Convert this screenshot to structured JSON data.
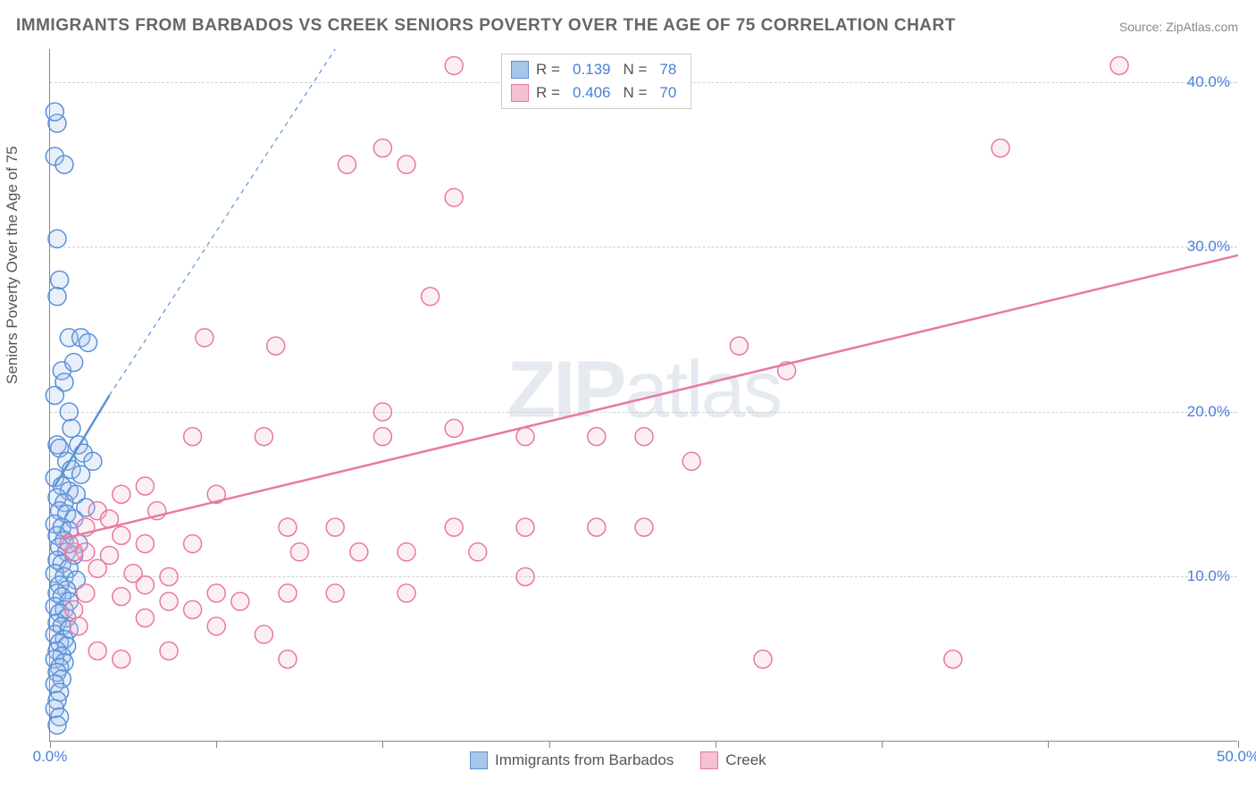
{
  "title": "IMMIGRANTS FROM BARBADOS VS CREEK SENIORS POVERTY OVER THE AGE OF 75 CORRELATION CHART",
  "source": "Source: ZipAtlas.com",
  "ylabel": "Seniors Poverty Over the Age of 75",
  "watermark_bold": "ZIP",
  "watermark_light": "atlas",
  "chart": {
    "type": "scatter",
    "background_color": "#ffffff",
    "grid_color": "#d0d0d0",
    "axis_color": "#888888",
    "tick_label_color": "#4a7fd8",
    "axis_label_color": "#555555",
    "title_color": "#666666",
    "title_fontsize": 19,
    "label_fontsize": 17,
    "tick_fontsize": 17,
    "xlim": [
      0,
      50
    ],
    "ylim": [
      0,
      42
    ],
    "yticks": [
      10,
      20,
      30,
      40
    ],
    "ytick_labels": [
      "10.0%",
      "20.0%",
      "30.0%",
      "40.0%"
    ],
    "xticks": [
      0,
      7,
      14,
      21,
      28,
      35,
      42,
      50
    ],
    "xtick_labels_shown": {
      "0": "0.0%",
      "50": "50.0%"
    },
    "marker_radius": 10,
    "marker_stroke_width": 1.5,
    "marker_fill_opacity": 0.25,
    "series": [
      {
        "name": "Immigrants from Barbados",
        "color_stroke": "#5b91d8",
        "color_fill": "#a8c5ea",
        "R": "0.139",
        "N": "78",
        "trend_line": {
          "x1": 0.2,
          "y1": 15.5,
          "x2": 2.5,
          "y2": 21,
          "dash_extend_to": [
            12,
            42
          ],
          "stroke_width": 2.5
        },
        "points": [
          [
            0.3,
            37.5
          ],
          [
            0.2,
            35.5
          ],
          [
            0.6,
            35
          ],
          [
            0.3,
            30.5
          ],
          [
            0.4,
            28
          ],
          [
            0.3,
            27
          ],
          [
            0.8,
            24.5
          ],
          [
            1.3,
            24.5
          ],
          [
            1.6,
            24.2
          ],
          [
            0.5,
            22.5
          ],
          [
            0.6,
            21.8
          ],
          [
            0.2,
            21
          ],
          [
            0.8,
            20
          ],
          [
            0.9,
            19
          ],
          [
            1.2,
            18
          ],
          [
            0.3,
            18
          ],
          [
            0.4,
            17.8
          ],
          [
            1.4,
            17.5
          ],
          [
            0.7,
            17
          ],
          [
            0.9,
            16.5
          ],
          [
            1.3,
            16.2
          ],
          [
            0.2,
            16
          ],
          [
            0.5,
            15.5
          ],
          [
            0.8,
            15.2
          ],
          [
            1.1,
            15
          ],
          [
            0.3,
            14.8
          ],
          [
            0.6,
            14.5
          ],
          [
            1.5,
            14.2
          ],
          [
            0.4,
            14
          ],
          [
            0.7,
            13.8
          ],
          [
            1.0,
            13.5
          ],
          [
            0.2,
            13.2
          ],
          [
            0.5,
            13
          ],
          [
            0.8,
            12.8
          ],
          [
            0.3,
            12.5
          ],
          [
            0.6,
            12.2
          ],
          [
            1.2,
            12
          ],
          [
            0.4,
            11.8
          ],
          [
            0.7,
            11.5
          ],
          [
            1.0,
            11.3
          ],
          [
            0.3,
            11
          ],
          [
            0.5,
            10.8
          ],
          [
            0.8,
            10.5
          ],
          [
            0.2,
            10.2
          ],
          [
            0.6,
            10
          ],
          [
            1.1,
            9.8
          ],
          [
            0.4,
            9.5
          ],
          [
            0.7,
            9.2
          ],
          [
            0.3,
            9
          ],
          [
            0.5,
            8.8
          ],
          [
            0.8,
            8.5
          ],
          [
            0.2,
            8.2
          ],
          [
            0.6,
            8
          ],
          [
            0.4,
            7.8
          ],
          [
            0.7,
            7.5
          ],
          [
            0.3,
            7.2
          ],
          [
            0.5,
            7
          ],
          [
            0.8,
            6.8
          ],
          [
            0.2,
            6.5
          ],
          [
            0.6,
            6.2
          ],
          [
            0.4,
            6
          ],
          [
            0.7,
            5.8
          ],
          [
            0.3,
            5.5
          ],
          [
            0.5,
            5.2
          ],
          [
            0.2,
            5
          ],
          [
            0.6,
            4.8
          ],
          [
            0.4,
            4.5
          ],
          [
            0.3,
            4.2
          ],
          [
            0.5,
            3.8
          ],
          [
            0.2,
            3.5
          ],
          [
            0.4,
            3
          ],
          [
            0.3,
            2.5
          ],
          [
            0.2,
            2
          ],
          [
            0.4,
            1.5
          ],
          [
            0.3,
            1
          ],
          [
            0.2,
            38.2
          ],
          [
            1.0,
            23
          ],
          [
            1.8,
            17
          ]
        ]
      },
      {
        "name": "Creek",
        "color_stroke": "#e879a0",
        "color_fill": "#f5c0d2",
        "R": "0.406",
        "N": "70",
        "trend_line": {
          "x1": 0.5,
          "y1": 12.3,
          "x2": 50,
          "y2": 29.5,
          "stroke_width": 2.5
        },
        "points": [
          [
            17,
            41
          ],
          [
            45,
            41
          ],
          [
            40,
            36
          ],
          [
            14,
            36
          ],
          [
            12.5,
            35
          ],
          [
            15,
            35
          ],
          [
            17,
            33
          ],
          [
            16,
            27
          ],
          [
            29,
            24
          ],
          [
            31,
            22.5
          ],
          [
            6.5,
            24.5
          ],
          [
            9.5,
            24
          ],
          [
            14,
            20
          ],
          [
            6,
            18.5
          ],
          [
            9,
            18.5
          ],
          [
            14,
            18.5
          ],
          [
            17,
            19
          ],
          [
            20,
            18.5
          ],
          [
            23,
            18.5
          ],
          [
            25,
            18.5
          ],
          [
            27,
            17
          ],
          [
            7,
            15
          ],
          [
            4,
            15.5
          ],
          [
            3,
            15
          ],
          [
            4.5,
            14
          ],
          [
            2,
            14
          ],
          [
            2.5,
            13.5
          ],
          [
            10,
            13
          ],
          [
            12,
            13
          ],
          [
            17,
            13
          ],
          [
            20,
            13
          ],
          [
            23,
            13
          ],
          [
            25,
            13
          ],
          [
            3,
            12.5
          ],
          [
            4,
            12
          ],
          [
            6,
            12
          ],
          [
            1.5,
            11.5
          ],
          [
            2.5,
            11.3
          ],
          [
            1,
            11.5
          ],
          [
            10.5,
            11.5
          ],
          [
            13,
            11.5
          ],
          [
            15,
            11.5
          ],
          [
            18,
            11.5
          ],
          [
            2,
            10.5
          ],
          [
            3.5,
            10.2
          ],
          [
            5,
            10
          ],
          [
            20,
            10
          ],
          [
            4,
            9.5
          ],
          [
            7,
            9
          ],
          [
            10,
            9
          ],
          [
            12,
            9
          ],
          [
            15,
            9
          ],
          [
            3,
            8.8
          ],
          [
            5,
            8.5
          ],
          [
            8,
            8.5
          ],
          [
            6,
            8
          ],
          [
            4,
            7.5
          ],
          [
            7,
            7
          ],
          [
            9,
            6.5
          ],
          [
            5,
            5.5
          ],
          [
            30,
            5
          ],
          [
            38,
            5
          ],
          [
            2,
            5.5
          ],
          [
            3,
            5
          ],
          [
            10,
            5
          ],
          [
            1.5,
            9
          ],
          [
            1,
            8
          ],
          [
            1.2,
            7
          ],
          [
            0.8,
            12
          ],
          [
            1.5,
            13
          ]
        ]
      }
    ]
  },
  "legend_top": {
    "r_label": "R =",
    "n_label": "N ="
  },
  "legend_bottom": [
    {
      "swatch_stroke": "#5b91d8",
      "swatch_fill": "#a8c5ea",
      "label": "Immigrants from Barbados"
    },
    {
      "swatch_stroke": "#e879a0",
      "swatch_fill": "#f5c0d2",
      "label": "Creek"
    }
  ]
}
